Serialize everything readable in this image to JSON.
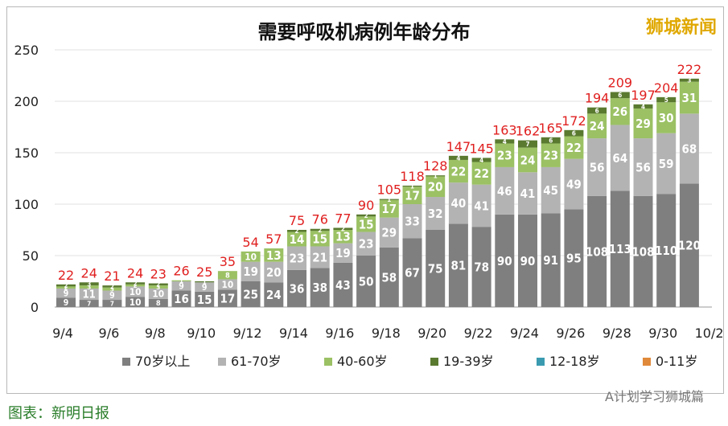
{
  "title": "需要呼吸机病例年龄分布",
  "brand": "狮城新闻",
  "footer_left": "图表：新明日报",
  "footer_right": "A计划学习狮城篇",
  "chart_data": {
    "type": "bar",
    "stacked": true,
    "title": "需要呼吸机病例年龄分布",
    "categories": [
      "9/4",
      "9/5",
      "9/6",
      "9/7",
      "9/8",
      "9/9",
      "9/10",
      "9/11",
      "9/12",
      "9/13",
      "9/14",
      "9/15",
      "9/16",
      "9/17",
      "9/18",
      "9/19",
      "9/20",
      "9/21",
      "9/22",
      "9/23",
      "9/24",
      "9/25",
      "9/26",
      "9/27",
      "9/28",
      "9/29",
      "9/30",
      "10/1"
    ],
    "x_tick_labels": [
      "9/4",
      "9/6",
      "9/8",
      "9/10",
      "9/12",
      "9/14",
      "9/16",
      "9/18",
      "9/20",
      "9/22",
      "9/24",
      "9/26",
      "9/28",
      "9/30",
      "10/2"
    ],
    "ylim": [
      0,
      250
    ],
    "yticks": [
      0,
      50,
      100,
      150,
      200,
      250
    ],
    "legend_position": "bottom",
    "series": [
      {
        "name": "70岁以上",
        "color": "#7f7f7f",
        "label_color": "#ffffff",
        "values": [
          9,
          7,
          7,
          10,
          8,
          16,
          15,
          17,
          25,
          24,
          36,
          38,
          43,
          50,
          58,
          67,
          75,
          81,
          78,
          90,
          90,
          91,
          95,
          108,
          113,
          108,
          110,
          120
        ]
      },
      {
        "name": "61-70岁",
        "color": "#b3b3b3",
        "label_color": "#ffffff",
        "values": [
          9,
          11,
          9,
          10,
          10,
          9,
          9,
          10,
          19,
          20,
          23,
          21,
          19,
          23,
          29,
          33,
          32,
          40,
          41,
          46,
          41,
          45,
          49,
          56,
          64,
          56,
          59,
          68
        ]
      },
      {
        "name": "40-60岁",
        "color": "#9bc164",
        "label_color": "#ffffff",
        "values": [
          2,
          3,
          3,
          2,
          3,
          1,
          0,
          8,
          10,
          13,
          14,
          15,
          13,
          15,
          17,
          17,
          20,
          22,
          22,
          23,
          24,
          23,
          22,
          24,
          26,
          29,
          30,
          31
        ]
      },
      {
        "name": "19-39岁",
        "color": "#5a7a30",
        "label_color": "#ffffff",
        "values": [
          2,
          3,
          2,
          2,
          2,
          0,
          1,
          0,
          0,
          0,
          2,
          2,
          2,
          2,
          1,
          1,
          1,
          4,
          4,
          4,
          7,
          6,
          6,
          6,
          6,
          4,
          5,
          3
        ]
      },
      {
        "name": "12-18岁",
        "color": "#3a9bb0",
        "values": [
          0,
          0,
          0,
          0,
          0,
          0,
          0,
          0,
          0,
          0,
          0,
          0,
          0,
          0,
          0,
          0,
          0,
          0,
          0,
          0,
          0,
          0,
          0,
          0,
          0,
          0,
          0,
          0
        ]
      },
      {
        "name": "0-11岁",
        "color": "#e0893a",
        "values": [
          0,
          0,
          0,
          0,
          0,
          0,
          0,
          0,
          0,
          0,
          0,
          0,
          0,
          0,
          0,
          0,
          0,
          0,
          0,
          0,
          0,
          0,
          0,
          0,
          0,
          0,
          0,
          0
        ]
      }
    ],
    "totals": [
      22,
      24,
      21,
      24,
      23,
      26,
      25,
      35,
      54,
      57,
      75,
      76,
      77,
      90,
      105,
      118,
      128,
      147,
      145,
      163,
      162,
      165,
      172,
      194,
      209,
      197,
      204,
      222
    ],
    "total_label_color": "#e02020"
  }
}
